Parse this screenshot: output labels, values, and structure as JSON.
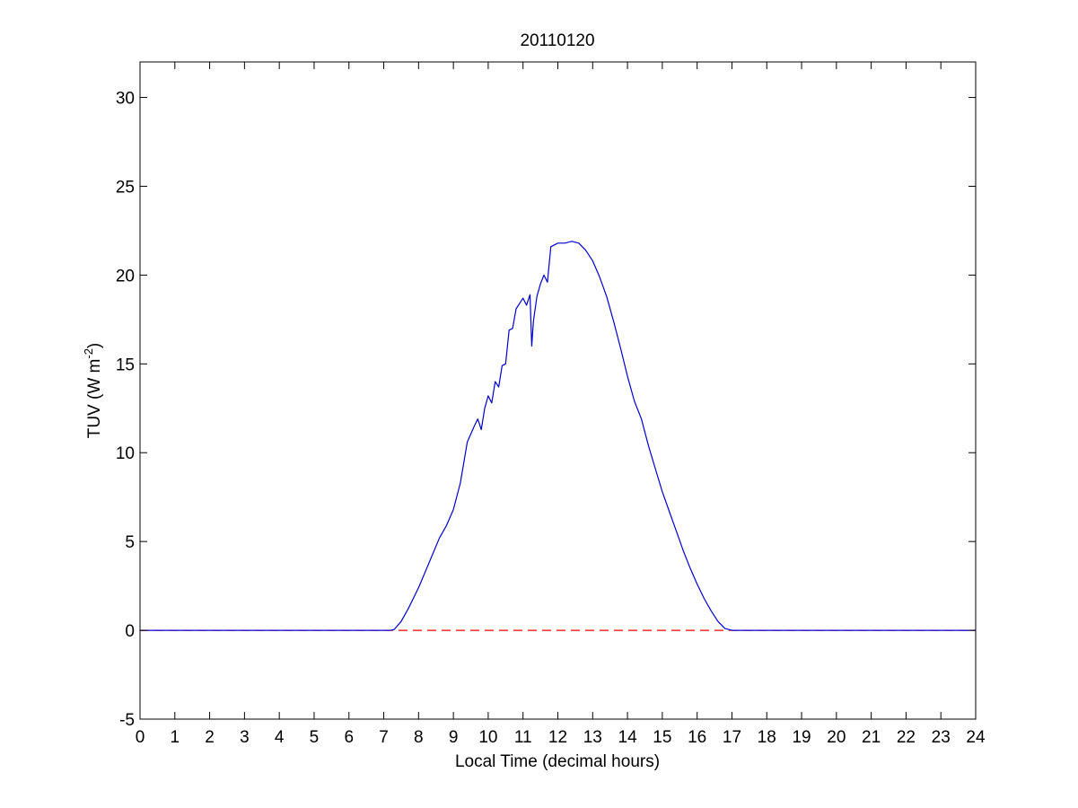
{
  "chart_data": {
    "type": "line",
    "title": "20110120",
    "xlabel": "Local Time (decimal hours)",
    "ylabel": {
      "prefix": "TUV (W m",
      "superscript": "-2",
      "suffix": ")"
    },
    "xlim": [
      0,
      24
    ],
    "ylim": [
      -5,
      32
    ],
    "xticks": [
      0,
      1,
      2,
      3,
      4,
      5,
      6,
      7,
      8,
      9,
      10,
      11,
      12,
      13,
      14,
      15,
      16,
      17,
      18,
      19,
      20,
      21,
      22,
      23,
      24
    ],
    "yticks": [
      -5,
      0,
      5,
      10,
      15,
      20,
      25,
      30
    ],
    "grid": false,
    "legend": "none",
    "series": [
      {
        "color": "#0000cc",
        "style": "solid",
        "x": [
          0,
          7.2,
          7.3,
          7.5,
          7.7,
          8.0,
          8.3,
          8.6,
          8.8,
          9.0,
          9.2,
          9.4,
          9.6,
          9.7,
          9.8,
          9.9,
          10.0,
          10.1,
          10.2,
          10.3,
          10.4,
          10.5,
          10.6,
          10.7,
          10.8,
          10.9,
          11.0,
          11.1,
          11.2,
          11.25,
          11.3,
          11.4,
          11.5,
          11.6,
          11.7,
          11.8,
          11.9,
          12.0,
          12.2,
          12.4,
          12.6,
          12.8,
          13.0,
          13.2,
          13.4,
          13.6,
          13.8,
          14.0,
          14.2,
          14.4,
          14.6,
          14.8,
          15.0,
          15.2,
          15.4,
          15.6,
          15.8,
          16.0,
          16.2,
          16.4,
          16.6,
          16.8,
          17.0,
          17.2,
          17.4,
          17.5,
          18,
          24
        ],
        "y": [
          0,
          0,
          0.05,
          0.5,
          1.2,
          2.4,
          3.8,
          5.2,
          5.9,
          6.8,
          8.3,
          10.6,
          11.5,
          11.9,
          11.3,
          12.5,
          13.2,
          12.8,
          14.0,
          13.7,
          14.9,
          15.0,
          16.9,
          17.0,
          18.1,
          18.4,
          18.7,
          18.3,
          18.9,
          16.0,
          17.4,
          18.8,
          19.5,
          20.0,
          19.6,
          21.6,
          21.7,
          21.8,
          21.8,
          21.9,
          21.8,
          21.4,
          20.8,
          19.9,
          18.8,
          17.4,
          15.9,
          14.3,
          12.9,
          11.9,
          10.4,
          9.1,
          7.8,
          6.7,
          5.6,
          4.5,
          3.5,
          2.6,
          1.8,
          1.1,
          0.5,
          0.1,
          0,
          0,
          0,
          0,
          0,
          0
        ]
      },
      {
        "color": "#ff0000",
        "style": "dashed",
        "x": [
          0,
          24
        ],
        "y": [
          0,
          0
        ]
      }
    ]
  }
}
